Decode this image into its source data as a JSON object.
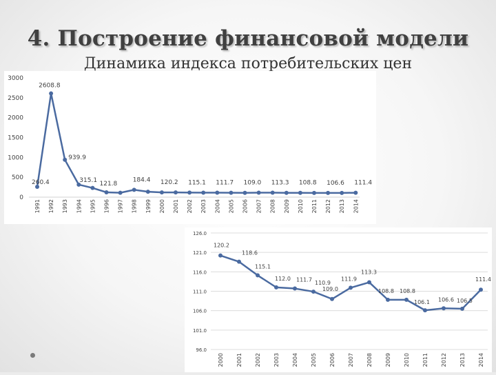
{
  "slide": {
    "title": "4. Построение финансовой модели",
    "subtitle": "Динамика индекса потребительских цен"
  },
  "colors": {
    "line": "#4a6aa0",
    "marker": "#4a6aa0",
    "grid": "#dcdcdc"
  },
  "chart_data": [
    {
      "type": "line",
      "x": [
        "1991",
        "1992",
        "1993",
        "1994",
        "1995",
        "1996",
        "1997",
        "1998",
        "1999",
        "2000",
        "2001",
        "2002",
        "2003",
        "2004",
        "2005",
        "2006",
        "2007",
        "2008",
        "2009",
        "2010",
        "2011",
        "2012",
        "2013",
        "2014"
      ],
      "values": [
        260.4,
        2608.8,
        939.9,
        315.1,
        231.3,
        121.8,
        111.0,
        184.4,
        136.5,
        120.2,
        118.6,
        115.1,
        112.0,
        111.7,
        110.9,
        109.0,
        111.9,
        113.3,
        108.8,
        108.8,
        106.1,
        106.6,
        106.5,
        111.4
      ],
      "data_labels": [
        {
          "i": 0,
          "text": "260.4"
        },
        {
          "i": 1,
          "text": "2608.8"
        },
        {
          "i": 2,
          "text": "939.9"
        },
        {
          "i": 3,
          "text": "315.1"
        },
        {
          "i": 5,
          "text": "121.8"
        },
        {
          "i": 7,
          "text": "184.4"
        },
        {
          "i": 9,
          "text": "120.2"
        },
        {
          "i": 11,
          "text": "115.1"
        },
        {
          "i": 13,
          "text": "111.7"
        },
        {
          "i": 15,
          "text": "109.0"
        },
        {
          "i": 17,
          "text": "113.3"
        },
        {
          "i": 19,
          "text": "108.8"
        },
        {
          "i": 21,
          "text": "106.6"
        },
        {
          "i": 23,
          "text": "111.4"
        }
      ],
      "yticks": [
        "0",
        "500",
        "1000",
        "1500",
        "2000",
        "2500",
        "3000"
      ],
      "ylim": [
        0,
        3000
      ],
      "grid": false
    },
    {
      "type": "line",
      "x": [
        "2000",
        "2001",
        "2002",
        "2003",
        "2004",
        "2005",
        "2006",
        "2007",
        "2008",
        "2009",
        "2010",
        "2011",
        "2012",
        "2013",
        "2014"
      ],
      "values": [
        120.2,
        118.6,
        115.1,
        112.0,
        111.7,
        110.9,
        109.0,
        111.9,
        113.3,
        108.8,
        108.8,
        106.1,
        106.6,
        106.5,
        111.4
      ],
      "data_labels": [
        "120.2",
        "118.6",
        "115.1",
        "112.0",
        "111.7",
        "110.9",
        "109.0",
        "111.9",
        "113.3",
        "108.8",
        "108.8",
        "106.1",
        "106.6",
        "106.5",
        "111.4"
      ],
      "yticks": [
        "96.0",
        "101.0",
        "106.0",
        "111.0",
        "116.0",
        "121.0",
        "126.0"
      ],
      "ylim": [
        96,
        126
      ],
      "grid": true
    }
  ]
}
